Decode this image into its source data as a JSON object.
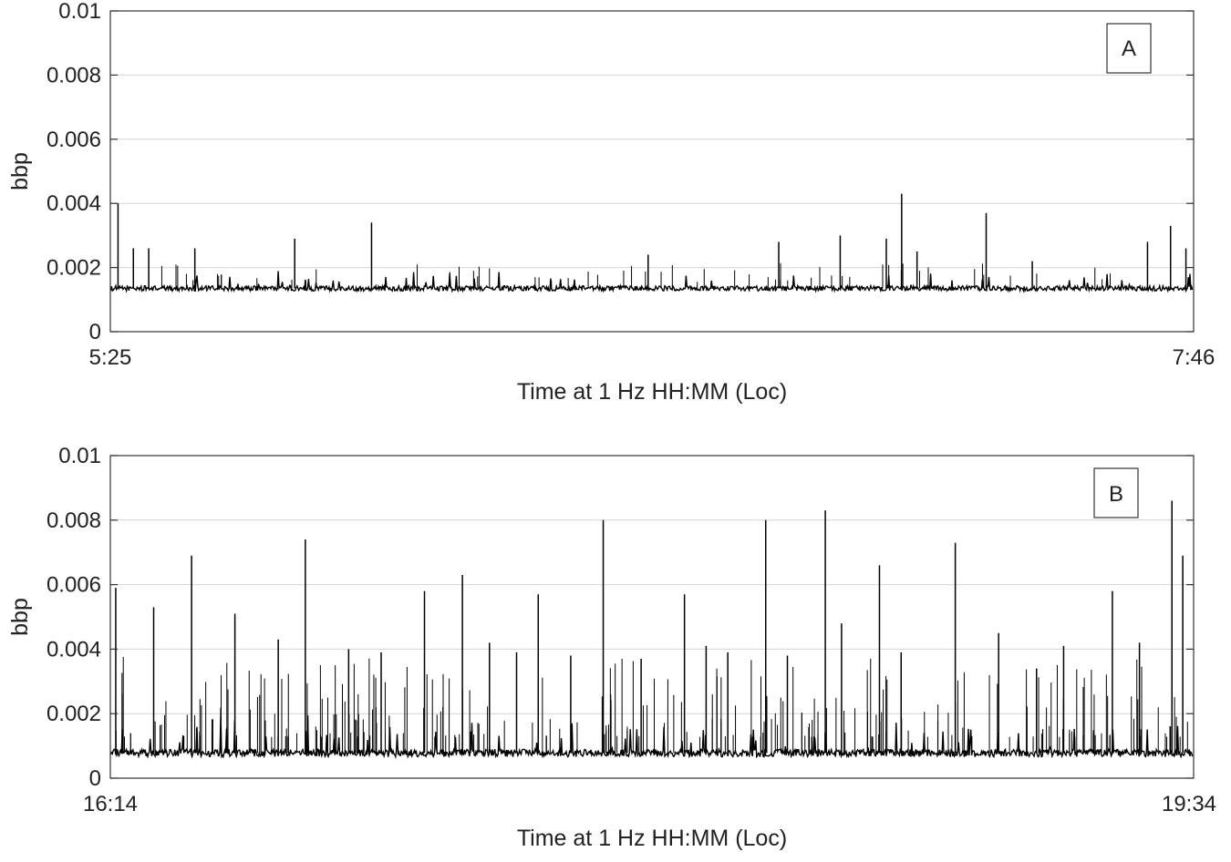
{
  "chart_data": [
    {
      "type": "line",
      "panel_label": "A",
      "xlabel": "Time at 1 Hz HH:MM (Loc)",
      "ylabel": "bbp",
      "x_tick_labels": [
        "5:25",
        "7:46"
      ],
      "x_range": [
        "5:25",
        "7:46"
      ],
      "y_ticks": [
        "0",
        "0.002",
        "0.004",
        "0.006",
        "0.008",
        "0.01"
      ],
      "ylim": [
        0,
        0.01
      ],
      "grid": "horizontal",
      "color": "#000000",
      "series": [
        {
          "baseline": 0.00135,
          "baseline_noise": 8e-05,
          "spike_x": [
            "5:26",
            "5:28",
            "5:30",
            "5:36",
            "5:49",
            "5:59",
            "6:35",
            "6:52",
            "7:00",
            "7:06",
            "7:08",
            "7:10",
            "7:19",
            "7:25",
            "7:40",
            "7:43",
            "7:45"
          ],
          "spike_y": [
            0.004,
            0.0026,
            0.0026,
            0.0026,
            0.0029,
            0.0034,
            0.0024,
            0.0028,
            0.003,
            0.0029,
            0.0043,
            0.0025,
            0.0037,
            0.0022,
            0.0028,
            0.0033,
            0.0026
          ]
        }
      ]
    },
    {
      "type": "line",
      "panel_label": "B",
      "xlabel": "Time at 1 Hz HH:MM (Loc)",
      "ylabel": "bbp",
      "x_tick_labels": [
        "16:14",
        "19:34"
      ],
      "x_range": [
        "16:14",
        "19:34"
      ],
      "y_ticks": [
        "0",
        "0.002",
        "0.004",
        "0.006",
        "0.008",
        "0.01"
      ],
      "ylim": [
        0,
        0.01
      ],
      "grid": "horizontal",
      "color": "#000000",
      "series": [
        {
          "baseline": 0.00078,
          "baseline_noise": 0.00012,
          "spike_x": [
            "16:15",
            "16:22",
            "16:29",
            "16:37",
            "16:45",
            "16:50",
            "16:58",
            "17:04",
            "17:12",
            "17:19",
            "17:24",
            "17:29",
            "17:33",
            "17:39",
            "17:45",
            "17:52",
            "18:00",
            "18:04",
            "18:08",
            "18:15",
            "18:19",
            "18:26",
            "18:29",
            "18:36",
            "18:40",
            "18:50",
            "18:58",
            "19:05",
            "19:10",
            "19:19",
            "19:24",
            "19:30",
            "19:32"
          ],
          "spike_y": [
            0.0059,
            0.0053,
            0.0069,
            0.0051,
            0.0043,
            0.0074,
            0.004,
            0.0039,
            0.0058,
            0.0063,
            0.0042,
            0.0039,
            0.0057,
            0.0038,
            0.008,
            0.0037,
            0.0057,
            0.0041,
            0.0039,
            0.008,
            0.0038,
            0.0083,
            0.0048,
            0.0066,
            0.0039,
            0.0073,
            0.0045,
            0.0034,
            0.0041,
            0.0058,
            0.0042,
            0.0086,
            0.0069
          ]
        }
      ]
    }
  ]
}
